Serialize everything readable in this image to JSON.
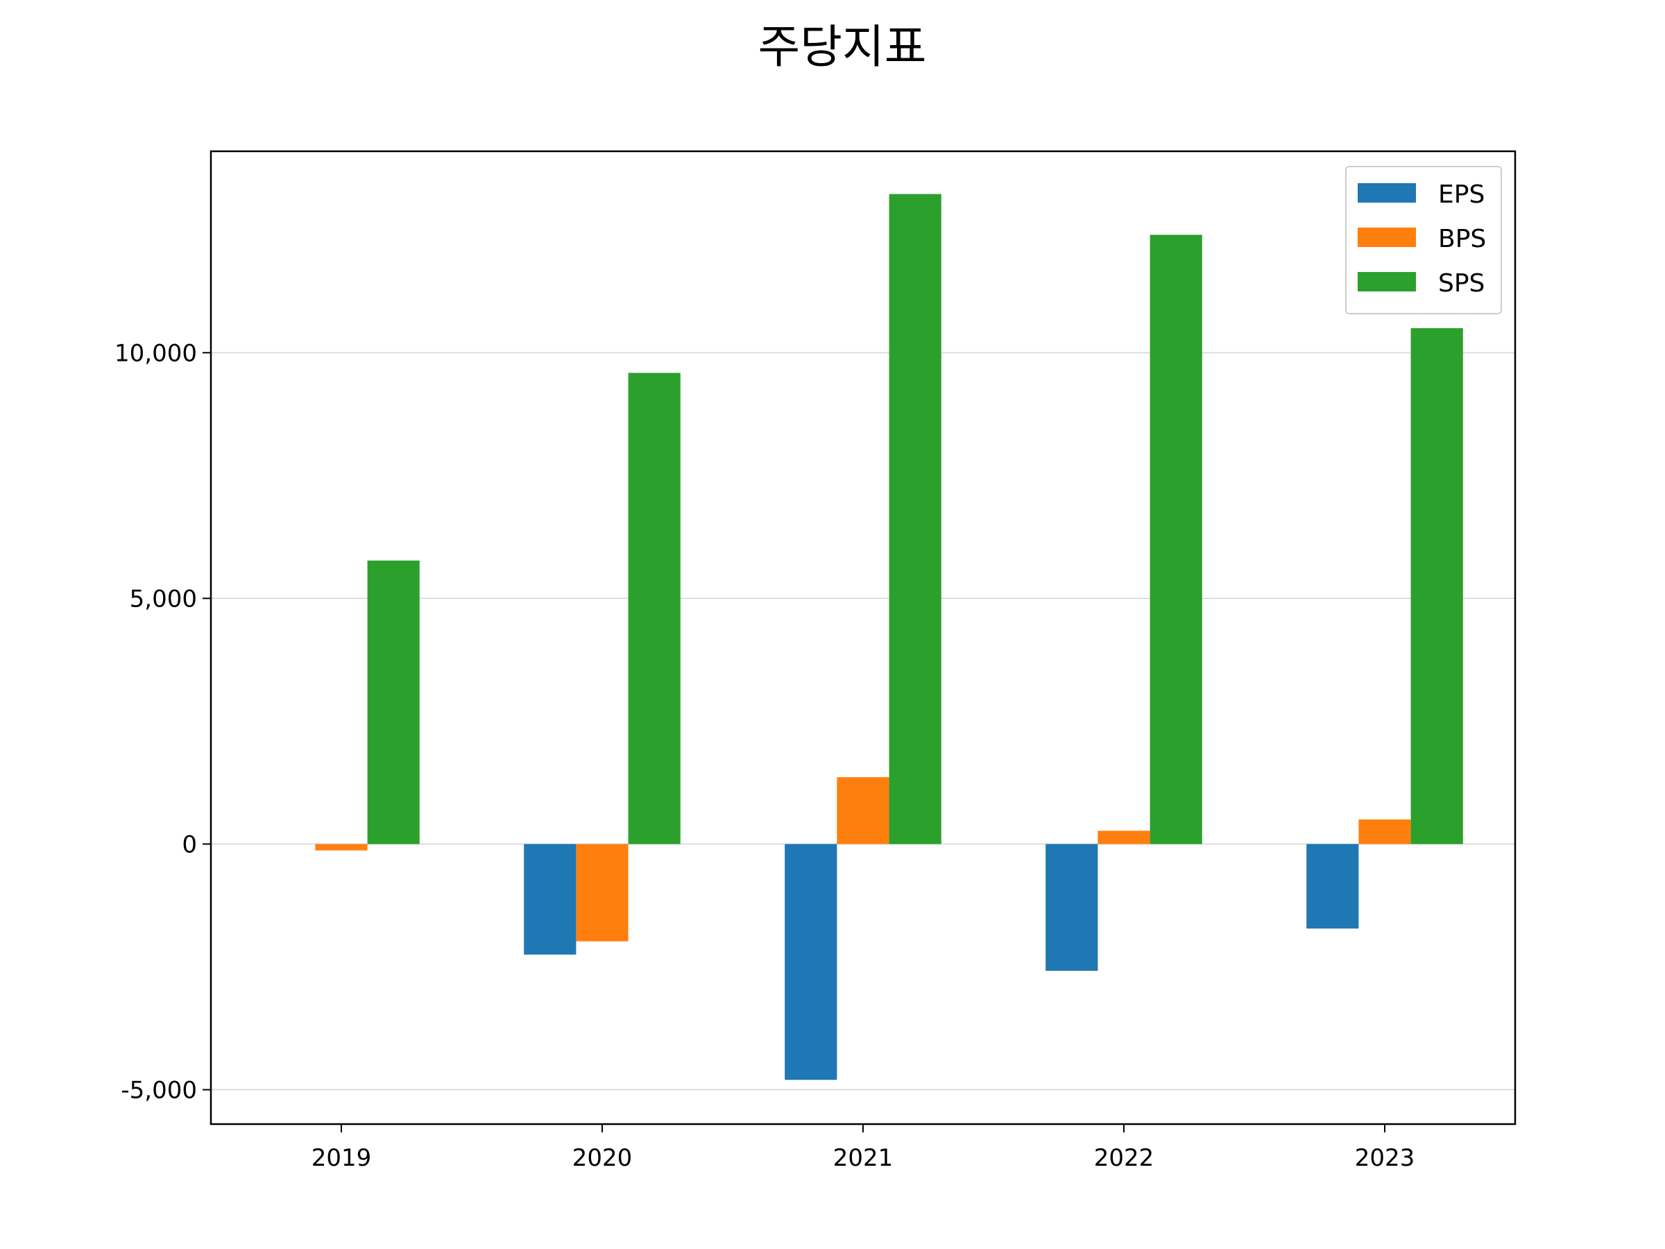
{
  "chart_data": {
    "type": "bar",
    "title": "주당지표",
    "xlabel": "",
    "ylabel": "",
    "categories": [
      "2019",
      "2020",
      "2021",
      "2022",
      "2023"
    ],
    "series": [
      {
        "name": "EPS",
        "color": "#1f77b4",
        "values": [
          0,
          -2250,
          -4800,
          -2580,
          -1720
        ]
      },
      {
        "name": "BPS",
        "color": "#ff7f0e",
        "values": [
          -130,
          -1980,
          1360,
          270,
          500
        ]
      },
      {
        "name": "SPS",
        "color": "#2ca02c",
        "values": [
          5770,
          9590,
          13230,
          12400,
          10500
        ]
      }
    ],
    "ylim": [
      -5700,
      14100
    ],
    "yticks": [
      -5000,
      0,
      5000,
      10000
    ],
    "ytick_labels": [
      "-5,000",
      "0",
      "5,000",
      "10,000"
    ],
    "grid": "horizontal",
    "legend_position": "top-right"
  }
}
